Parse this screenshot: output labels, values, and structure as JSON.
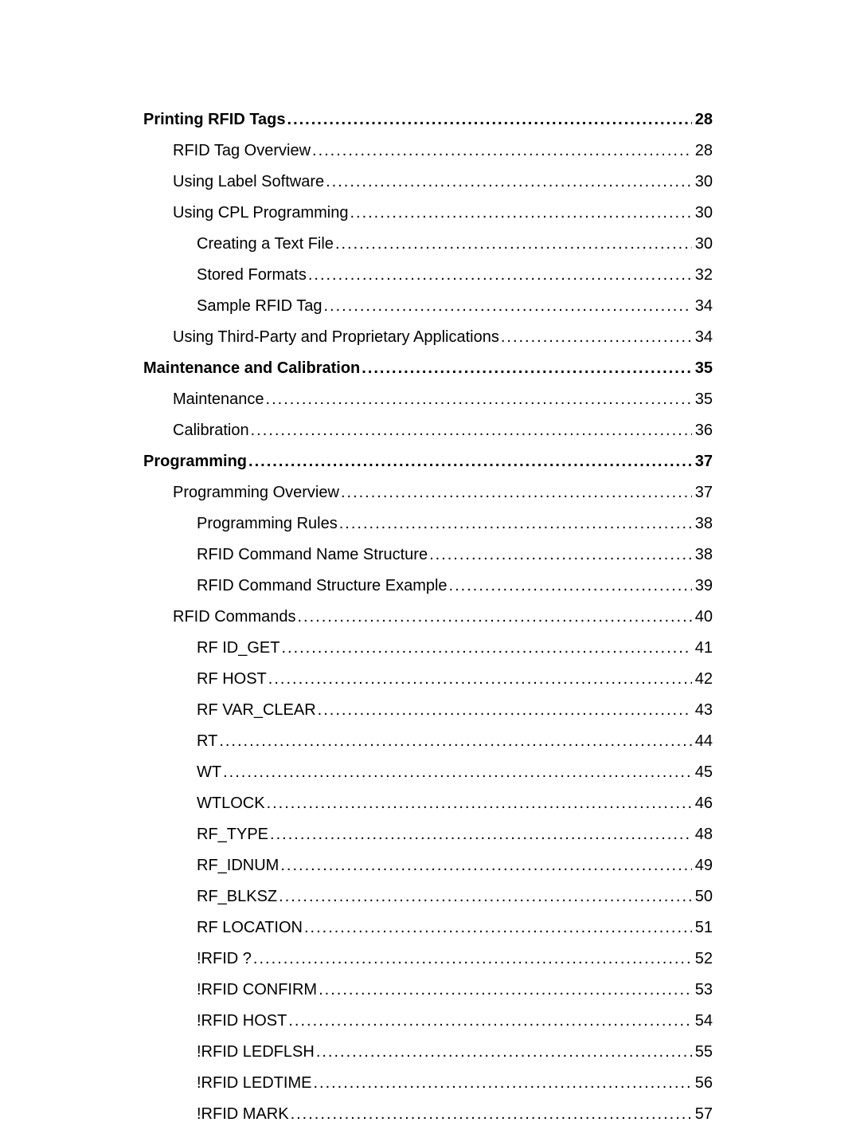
{
  "toc": {
    "entries": [
      {
        "title": "Printing RFID Tags",
        "page": "28",
        "level": 0,
        "bold": true
      },
      {
        "title": "RFID Tag Overview",
        "page": "28",
        "level": 1,
        "bold": false
      },
      {
        "title": "Using Label Software",
        "page": "30",
        "level": 1,
        "bold": false
      },
      {
        "title": "Using CPL Programming",
        "page": "30",
        "level": 1,
        "bold": false
      },
      {
        "title": "Creating a Text File",
        "page": "30",
        "level": 2,
        "bold": false
      },
      {
        "title": "Stored Formats",
        "page": "32",
        "level": 2,
        "bold": false
      },
      {
        "title": "Sample RFID Tag",
        "page": "34",
        "level": 2,
        "bold": false
      },
      {
        "title": "Using Third-Party and Proprietary Applications",
        "page": "34",
        "level": 1,
        "bold": false
      },
      {
        "title": "Maintenance and Calibration",
        "page": "35",
        "level": 0,
        "bold": true
      },
      {
        "title": "Maintenance",
        "page": "35",
        "level": 1,
        "bold": false
      },
      {
        "title": "Calibration",
        "page": "36",
        "level": 1,
        "bold": false
      },
      {
        "title": "Programming",
        "page": "37",
        "level": 0,
        "bold": true
      },
      {
        "title": "Programming Overview",
        "page": "37",
        "level": 1,
        "bold": false
      },
      {
        "title": "Programming Rules",
        "page": "38",
        "level": 2,
        "bold": false
      },
      {
        "title": "RFID Command Name Structure",
        "page": "38",
        "level": 2,
        "bold": false
      },
      {
        "title": "RFID Command Structure Example",
        "page": "39",
        "level": 2,
        "bold": false
      },
      {
        "title": "RFID Commands",
        "page": "40",
        "level": 1,
        "bold": false
      },
      {
        "title": "RF ID_GET",
        "page": "41",
        "level": 2,
        "bold": false
      },
      {
        "title": "RF HOST",
        "page": "42",
        "level": 2,
        "bold": false
      },
      {
        "title": "RF VAR_CLEAR",
        "page": "43",
        "level": 2,
        "bold": false
      },
      {
        "title": "RT",
        "page": "44",
        "level": 2,
        "bold": false
      },
      {
        "title": "WT",
        "page": "45",
        "level": 2,
        "bold": false
      },
      {
        "title": "WTLOCK",
        "page": "46",
        "level": 2,
        "bold": false
      },
      {
        "title": "RF_TYPE",
        "page": "48",
        "level": 2,
        "bold": false
      },
      {
        "title": "RF_IDNUM",
        "page": "49",
        "level": 2,
        "bold": false
      },
      {
        "title": "RF_BLKSZ",
        "page": "50",
        "level": 2,
        "bold": false
      },
      {
        "title": "RF LOCATION",
        "page": "51",
        "level": 2,
        "bold": false
      },
      {
        "title": "!RFID ?",
        "page": "52",
        "level": 2,
        "bold": false
      },
      {
        "title": "!RFID CONFIRM",
        "page": "53",
        "level": 2,
        "bold": false
      },
      {
        "title": "!RFID HOST",
        "page": "54",
        "level": 2,
        "bold": false
      },
      {
        "title": "!RFID LEDFLSH",
        "page": "55",
        "level": 2,
        "bold": false
      },
      {
        "title": "!RFID LEDTIME",
        "page": "56",
        "level": 2,
        "bold": false
      },
      {
        "title": "!RFID MARK",
        "page": "57",
        "level": 2,
        "bold": false
      }
    ]
  },
  "style": {
    "background_color": "#ffffff",
    "text_color": "#000000",
    "font_size": 20,
    "bold_font_weight": "bold",
    "leader_char": "."
  }
}
